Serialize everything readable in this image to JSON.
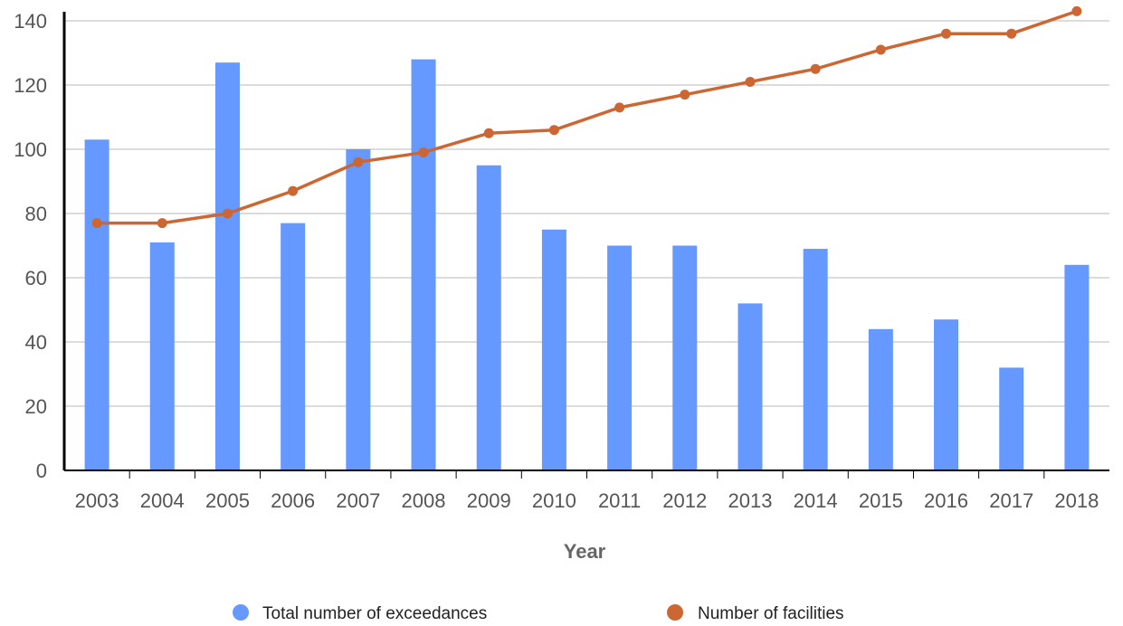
{
  "chart_data": {
    "type": "bar",
    "categories": [
      "2003",
      "2004",
      "2005",
      "2006",
      "2007",
      "2008",
      "2009",
      "2010",
      "2011",
      "2012",
      "2013",
      "2014",
      "2015",
      "2016",
      "2017",
      "2018"
    ],
    "series": [
      {
        "name": "Total number of exceedances",
        "type": "bar",
        "color": "#6699ff",
        "values": [
          103,
          71,
          127,
          77,
          100,
          128,
          95,
          75,
          70,
          70,
          52,
          69,
          44,
          47,
          32,
          64
        ]
      },
      {
        "name": "Number of facilities",
        "type": "line",
        "color": "#cc6633",
        "values": [
          77,
          77,
          80,
          87,
          96,
          99,
          105,
          106,
          113,
          117,
          121,
          125,
          131,
          136,
          136,
          143
        ]
      }
    ],
    "xlabel": "Year",
    "ylabel": "",
    "ylim": [
      0,
      140
    ],
    "yticks": [
      0,
      20,
      40,
      60,
      80,
      100,
      120,
      140
    ],
    "grid": true,
    "legend_position": "bottom"
  }
}
